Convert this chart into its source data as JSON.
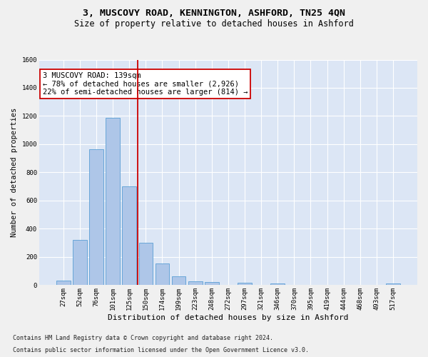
{
  "title1": "3, MUSCOVY ROAD, KENNINGTON, ASHFORD, TN25 4QN",
  "title2": "Size of property relative to detached houses in Ashford",
  "xlabel": "Distribution of detached houses by size in Ashford",
  "ylabel": "Number of detached properties",
  "bar_labels": [
    "27sqm",
    "52sqm",
    "76sqm",
    "101sqm",
    "125sqm",
    "150sqm",
    "174sqm",
    "199sqm",
    "223sqm",
    "248sqm",
    "272sqm",
    "297sqm",
    "321sqm",
    "346sqm",
    "370sqm",
    "395sqm",
    "419sqm",
    "444sqm",
    "468sqm",
    "493sqm",
    "517sqm"
  ],
  "bar_values": [
    30,
    320,
    965,
    1185,
    700,
    300,
    155,
    65,
    25,
    20,
    0,
    15,
    0,
    10,
    0,
    0,
    0,
    0,
    0,
    0,
    10
  ],
  "bar_color": "#aec6e8",
  "bar_edgecolor": "#5a9fd4",
  "vline_x": 4.5,
  "vline_color": "#cc0000",
  "annotation_line1": "3 MUSCOVY ROAD: 139sqm",
  "annotation_line2": "← 78% of detached houses are smaller (2,926)",
  "annotation_line3": "22% of semi-detached houses are larger (814) →",
  "annotation_box_color": "#ffffff",
  "annotation_box_edgecolor": "#cc0000",
  "ylim": [
    0,
    1600
  ],
  "yticks": [
    0,
    200,
    400,
    600,
    800,
    1000,
    1200,
    1400,
    1600
  ],
  "footnote1": "Contains HM Land Registry data © Crown copyright and database right 2024.",
  "footnote2": "Contains public sector information licensed under the Open Government Licence v3.0.",
  "fig_bg_color": "#f0f0f0",
  "bg_color": "#dce6f5",
  "grid_color": "#ffffff",
  "title1_fontsize": 9.5,
  "title2_fontsize": 8.5,
  "xlabel_fontsize": 8,
  "ylabel_fontsize": 7.5,
  "tick_fontsize": 6.5,
  "annotation_fontsize": 7.5,
  "footnote_fontsize": 6.0
}
